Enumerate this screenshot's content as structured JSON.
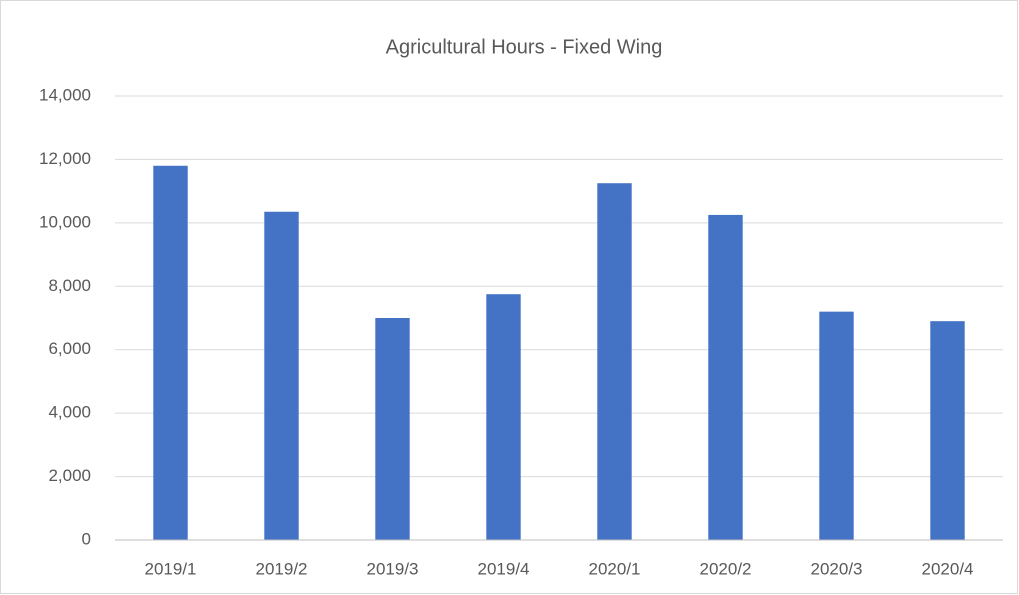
{
  "chart_data": {
    "type": "bar",
    "title": "Agricultural Hours - Fixed Wing",
    "categories": [
      "2019/1",
      "2019/2",
      "2019/3",
      "2019/4",
      "2020/1",
      "2020/2",
      "2020/3",
      "2020/4"
    ],
    "values": [
      11800,
      10350,
      7000,
      7750,
      11250,
      10250,
      7200,
      6900
    ],
    "color": "#4472c4",
    "ylim": [
      0,
      14000
    ],
    "yticks": [
      0,
      {
        "value": 2000,
        "label": "2,000"
      },
      {
        "value": 4000,
        "label": "4,000"
      },
      {
        "value": 6000,
        "label": "6,000"
      },
      {
        "value": 8000,
        "label": "8,000"
      },
      {
        "value": 10000,
        "label": "10,000"
      },
      {
        "value": 12000,
        "label": "12,000"
      },
      {
        "value": 14000,
        "label": "14,000"
      }
    ],
    "grid": true
  }
}
